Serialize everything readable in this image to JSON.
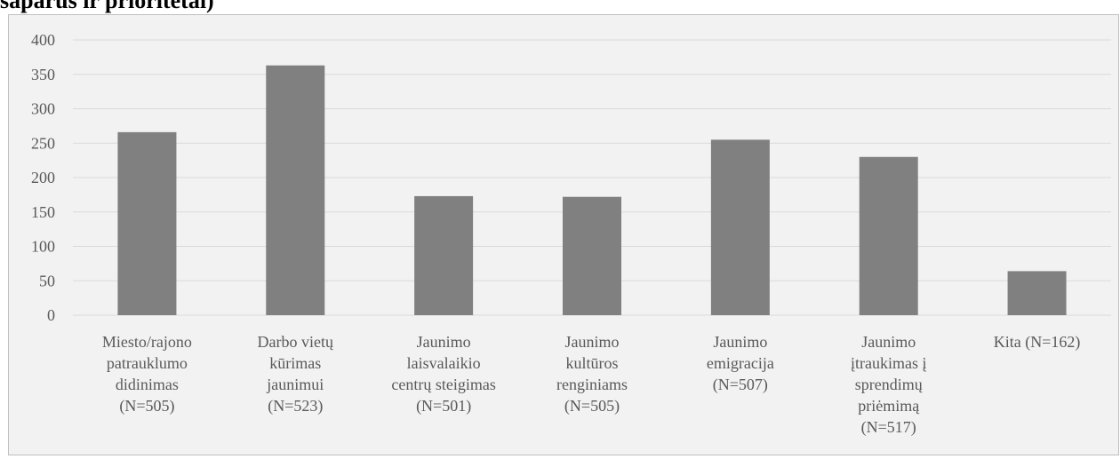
{
  "heading": "šaparūs ir prioritetai)",
  "colors": {
    "bar": "#808080",
    "grid": "#d9d9d9",
    "text": "#595959",
    "background": "#f2f2f2"
  },
  "chart_data": {
    "type": "bar",
    "title": "",
    "xlabel": "",
    "ylabel": "",
    "ylim": [
      0,
      400
    ],
    "yticks": [
      0,
      50,
      100,
      150,
      200,
      250,
      300,
      350,
      400
    ],
    "grid": true,
    "categories": [
      [
        "Miesto/rajono",
        "patrauklumo",
        "didinimas",
        "(N=505)"
      ],
      [
        "Darbo vietų",
        "kūrimas",
        "jaunimui",
        "(N=523)"
      ],
      [
        "Jaunimo",
        "laisvalaikio",
        "centrų steigimas",
        "(N=501)"
      ],
      [
        "Jaunimo",
        "kultūros",
        "renginiams",
        "(N=505)"
      ],
      [
        "Jaunimo",
        "emigracija",
        "(N=507)"
      ],
      [
        "Jaunimo",
        "įtraukimas į",
        "sprendimų",
        "priėmimą",
        "(N=517)"
      ],
      [
        "Kita (N=162)"
      ]
    ],
    "values": [
      266,
      363,
      173,
      172,
      255,
      230,
      64
    ]
  }
}
